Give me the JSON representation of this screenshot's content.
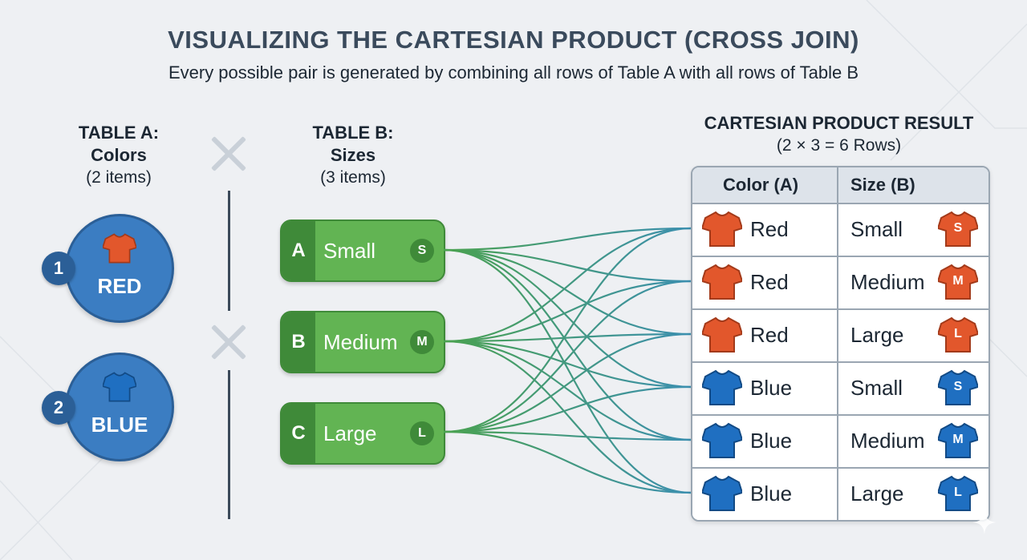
{
  "title": "VISUALIZING THE CARTESIAN PRODUCT (CROSS JOIN)",
  "subtitle": "Every possible pair is generated by combining all rows of Table A with all rows of Table B",
  "table_a": {
    "heading_line1": "TABLE A:",
    "heading_line2": "Colors",
    "count_label": "(2 items)",
    "items": [
      {
        "number": "1",
        "label": "RED",
        "color": "#e2572c"
      },
      {
        "number": "2",
        "label": "BLUE",
        "color": "#1f6fc1"
      }
    ]
  },
  "table_b": {
    "heading_line1": "TABLE B:",
    "heading_line2": "Sizes",
    "count_label": "(3 items)",
    "items": [
      {
        "tag": "A",
        "label": "Small",
        "badge": "S"
      },
      {
        "tag": "B",
        "label": "Medium",
        "badge": "M"
      },
      {
        "tag": "C",
        "label": "Large",
        "badge": "L"
      }
    ]
  },
  "result": {
    "heading": "CARTESIAN PRODUCT RESULT",
    "formula": "(2 × 3 = 6 Rows)",
    "columns": [
      "Color (A)",
      "Size (B)"
    ],
    "rows": [
      {
        "color": "Red",
        "size": "Small",
        "size_letter": "S",
        "shirt_color": "#e2572c"
      },
      {
        "color": "Red",
        "size": "Medium",
        "size_letter": "M",
        "shirt_color": "#e2572c"
      },
      {
        "color": "Red",
        "size": "Large",
        "size_letter": "L",
        "shirt_color": "#e2572c"
      },
      {
        "color": "Blue",
        "size": "Small",
        "size_letter": "S",
        "shirt_color": "#1f6fc1"
      },
      {
        "color": "Blue",
        "size": "Medium",
        "size_letter": "M",
        "shirt_color": "#1f6fc1"
      },
      {
        "color": "Blue",
        "size": "Large",
        "size_letter": "L",
        "shirt_color": "#1f6fc1"
      }
    ]
  },
  "colors": {
    "red_shirt": "#e2572c",
    "blue_shirt": "#1f6fc1",
    "green_pill": "#62b453",
    "green_dark": "#3f8a39",
    "blue_circle": "#3b7dc2",
    "line_green": "#4aa24f",
    "line_blue": "#3b8fb0"
  }
}
